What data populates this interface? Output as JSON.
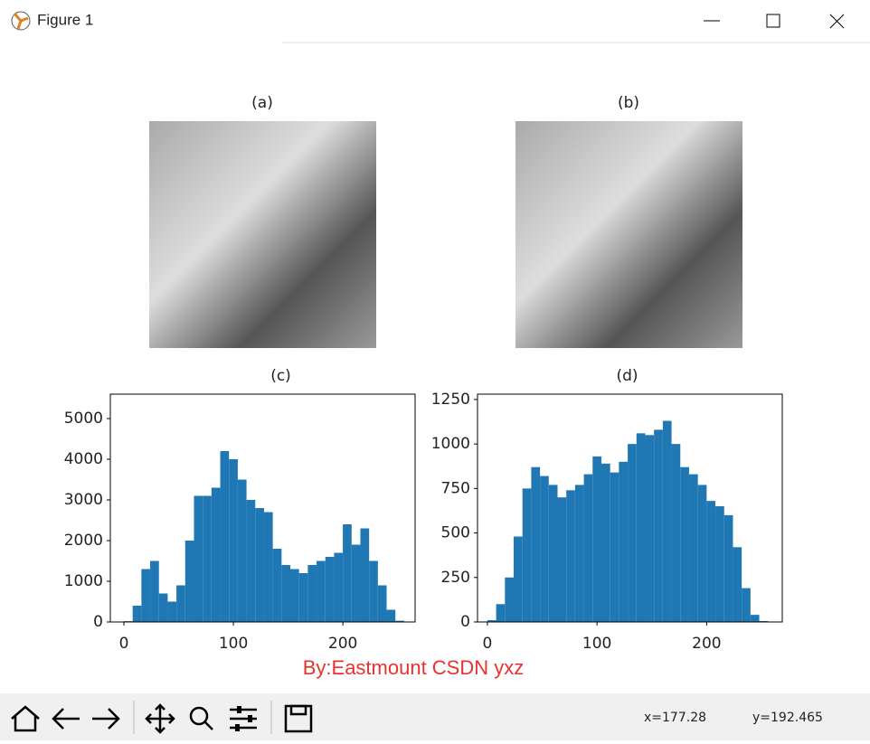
{
  "window": {
    "title": "Figure 1"
  },
  "images": [
    {
      "title": "(a)"
    },
    {
      "title": "(b)"
    }
  ],
  "chart_data": [
    {
      "type": "histogram",
      "title": "(c)",
      "color": "#1f77b4",
      "bins": [
        0,
        8,
        16,
        24,
        32,
        40,
        48,
        56,
        64,
        72,
        80,
        88,
        96,
        104,
        112,
        120,
        128,
        136,
        144,
        152,
        160,
        168,
        176,
        184,
        192,
        200,
        208,
        216,
        224,
        232,
        240,
        248,
        256
      ],
      "values": [
        20,
        400,
        1300,
        1500,
        700,
        500,
        900,
        2000,
        3100,
        3100,
        3300,
        4200,
        4000,
        3500,
        3000,
        2800,
        2700,
        1800,
        1400,
        1300,
        1200,
        1400,
        1500,
        1600,
        1700,
        2400,
        1900,
        2300,
        1500,
        900,
        300,
        30
      ],
      "xlim": [
        -12.4,
        266
      ],
      "ylim": [
        0,
        5600
      ],
      "xticks": [
        0,
        100,
        200
      ],
      "yticks": [
        0,
        1000,
        2000,
        3000,
        4000,
        5000
      ]
    },
    {
      "type": "histogram",
      "title": "(d)",
      "color": "#1f77b4",
      "bins": [
        0,
        8,
        16,
        24,
        32,
        40,
        48,
        56,
        64,
        72,
        80,
        88,
        96,
        104,
        112,
        120,
        128,
        136,
        144,
        152,
        160,
        168,
        176,
        184,
        192,
        200,
        208,
        216,
        224,
        232,
        240,
        248,
        256
      ],
      "values": [
        10,
        100,
        250,
        480,
        750,
        870,
        820,
        770,
        700,
        740,
        770,
        830,
        930,
        890,
        840,
        900,
        1000,
        1060,
        1050,
        1080,
        1130,
        1000,
        870,
        830,
        770,
        680,
        650,
        600,
        420,
        190,
        40,
        5
      ],
      "xlim": [
        -9,
        269
      ],
      "ylim": [
        0,
        1280
      ],
      "xticks": [
        0,
        100,
        200
      ],
      "yticks": [
        0,
        250,
        500,
        750,
        1000,
        1250
      ]
    }
  ],
  "watermark": "By:Eastmount CSDN yxz",
  "status": {
    "x": "x=177.28",
    "y": "y=192.465"
  }
}
